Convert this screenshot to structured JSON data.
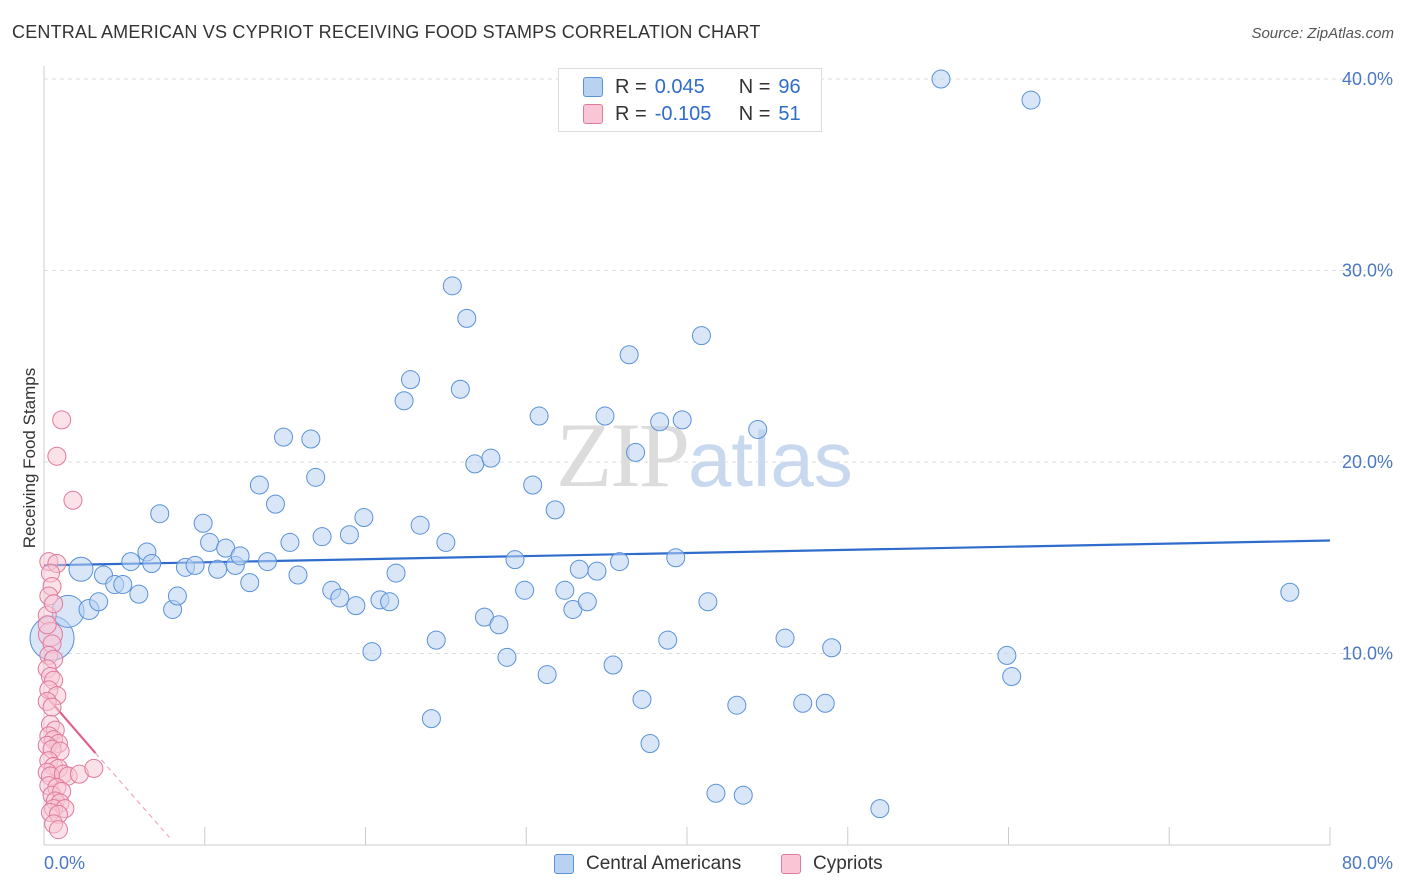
{
  "header": {
    "title": "CENTRAL AMERICAN VS CYPRIOT RECEIVING FOOD STAMPS CORRELATION CHART",
    "source": "Source: ZipAtlas.com"
  },
  "legend": {
    "rows": [
      {
        "r_label": "R =",
        "r_value": "0.045",
        "n_label": "N =",
        "n_value": "96"
      },
      {
        "r_label": "R =",
        "r_value": "-0.105",
        "n_label": "N =",
        "n_value": "51"
      }
    ]
  },
  "bottom_legend": [
    "Central Americans",
    "Cypriots"
  ],
  "watermark": {
    "zip": "ZIP",
    "atlas": "atlas"
  },
  "colors": {
    "central_fill": "#b8d2f2",
    "central_stroke": "#5b92d8",
    "central_line": "#2f6ccc",
    "cypriot_fill": "#f8c6d4",
    "cypriot_stroke": "#e07a9c",
    "cypriot_line": "#e0608a",
    "tick_text": "#4a78c2",
    "grid": "#dddddd"
  },
  "chart_data": {
    "type": "scatter",
    "title": "CENTRAL AMERICAN VS CYPRIOT RECEIVING FOOD STAMPS CORRELATION CHART",
    "xlabel": "",
    "ylabel": "Receiving Food Stamps",
    "xlim": [
      0,
      80
    ],
    "ylim": [
      0,
      40
    ],
    "x_tick_labels": [
      "0.0%",
      "80.0%"
    ],
    "y_ticks": [
      10,
      20,
      30,
      40
    ],
    "y_tick_labels": [
      "10.0%",
      "20.0%",
      "30.0%",
      "40.0%"
    ],
    "grid": true,
    "legend_position": "top-center",
    "series": [
      {
        "name": "Central Americans",
        "r": 0.045,
        "n": 96,
        "trend": {
          "x": [
            0,
            80
          ],
          "y": [
            14.6,
            15.9
          ]
        },
        "points": [
          [
            0.5,
            10.8,
            22
          ],
          [
            1.5,
            12.2,
            16
          ],
          [
            2.3,
            14.4,
            12
          ],
          [
            2.8,
            12.3,
            10
          ],
          [
            3.7,
            14.1,
            9
          ],
          [
            3.4,
            12.7,
            9
          ],
          [
            4.4,
            13.6,
            9
          ],
          [
            4.9,
            13.6,
            9
          ],
          [
            5.4,
            14.8,
            9
          ],
          [
            5.9,
            13.1,
            9
          ],
          [
            6.4,
            15.3,
            9
          ],
          [
            6.7,
            14.7,
            9
          ],
          [
            7.2,
            17.3,
            9
          ],
          [
            8.0,
            12.3,
            9
          ],
          [
            8.3,
            13.0,
            9
          ],
          [
            8.8,
            14.5,
            9
          ],
          [
            9.4,
            14.6,
            9
          ],
          [
            9.9,
            16.8,
            9
          ],
          [
            10.3,
            15.8,
            9
          ],
          [
            10.8,
            14.4,
            9
          ],
          [
            11.3,
            15.5,
            9
          ],
          [
            11.9,
            14.6,
            9
          ],
          [
            12.2,
            15.1,
            9
          ],
          [
            12.8,
            13.7,
            9
          ],
          [
            13.4,
            18.8,
            9
          ],
          [
            13.9,
            14.8,
            9
          ],
          [
            14.4,
            17.8,
            9
          ],
          [
            14.9,
            21.3,
            9
          ],
          [
            15.3,
            15.8,
            9
          ],
          [
            15.8,
            14.1,
            9
          ],
          [
            16.6,
            21.2,
            9
          ],
          [
            16.9,
            19.2,
            9
          ],
          [
            17.3,
            16.1,
            9
          ],
          [
            17.9,
            13.3,
            9
          ],
          [
            18.4,
            12.9,
            9
          ],
          [
            19.0,
            16.2,
            9
          ],
          [
            19.4,
            12.5,
            9
          ],
          [
            19.9,
            17.1,
            9
          ],
          [
            20.4,
            10.1,
            9
          ],
          [
            20.9,
            12.8,
            9
          ],
          [
            21.5,
            12.7,
            9
          ],
          [
            21.9,
            14.2,
            9
          ],
          [
            22.4,
            23.2,
            9
          ],
          [
            22.8,
            24.3,
            9
          ],
          [
            23.4,
            16.7,
            9
          ],
          [
            24.1,
            6.6,
            9
          ],
          [
            24.4,
            10.7,
            9
          ],
          [
            25.0,
            15.8,
            9
          ],
          [
            25.4,
            29.2,
            9
          ],
          [
            25.9,
            23.8,
            9
          ],
          [
            26.3,
            27.5,
            9
          ],
          [
            26.8,
            19.9,
            9
          ],
          [
            27.4,
            11.9,
            9
          ],
          [
            27.8,
            20.2,
            9
          ],
          [
            28.3,
            11.5,
            9
          ],
          [
            28.8,
            9.8,
            9
          ],
          [
            29.3,
            14.9,
            9
          ],
          [
            29.9,
            13.3,
            9
          ],
          [
            30.4,
            18.8,
            9
          ],
          [
            30.8,
            22.4,
            9
          ],
          [
            31.3,
            8.9,
            9
          ],
          [
            31.8,
            17.5,
            9
          ],
          [
            32.4,
            13.3,
            9
          ],
          [
            32.9,
            12.3,
            9
          ],
          [
            33.3,
            14.4,
            9
          ],
          [
            33.8,
            12.7,
            9
          ],
          [
            34.4,
            14.3,
            9
          ],
          [
            34.9,
            22.4,
            9
          ],
          [
            35.4,
            9.4,
            9
          ],
          [
            35.8,
            14.8,
            9
          ],
          [
            36.4,
            25.6,
            9
          ],
          [
            36.8,
            20.5,
            9
          ],
          [
            37.2,
            7.6,
            9
          ],
          [
            37.7,
            5.3,
            9
          ],
          [
            38.3,
            22.1,
            9
          ],
          [
            38.8,
            10.7,
            9
          ],
          [
            39.3,
            15.0,
            9
          ],
          [
            39.7,
            22.2,
            9
          ],
          [
            40.9,
            26.6,
            9
          ],
          [
            41.3,
            12.7,
            9
          ],
          [
            41.8,
            2.7,
            9
          ],
          [
            43.1,
            7.3,
            9
          ],
          [
            43.5,
            2.6,
            9
          ],
          [
            44.4,
            21.7,
            9
          ],
          [
            46.1,
            10.8,
            9
          ],
          [
            47.2,
            7.4,
            9
          ],
          [
            48.6,
            7.4,
            9
          ],
          [
            49.0,
            10.3,
            9
          ],
          [
            52.0,
            1.9,
            9
          ],
          [
            55.8,
            40.0,
            9
          ],
          [
            59.9,
            9.9,
            9
          ],
          [
            60.2,
            8.8,
            9
          ],
          [
            61.4,
            38.9,
            9
          ],
          [
            77.5,
            13.2,
            9
          ]
        ]
      },
      {
        "name": "Cypriots",
        "r": -0.105,
        "n": 51,
        "trend": {
          "x": [
            0,
            3.2
          ],
          "y": [
            7.9,
            4.8
          ]
        },
        "trend_extension": {
          "x": [
            3.2,
            7.8
          ],
          "y": [
            4.8,
            0.4
          ]
        },
        "points": [
          [
            0.2,
            12.0,
            9
          ],
          [
            0.4,
            11.0,
            12
          ],
          [
            0.5,
            10.5,
            9
          ],
          [
            0.3,
            9.9,
            9
          ],
          [
            0.6,
            9.7,
            9
          ],
          [
            0.2,
            9.2,
            9
          ],
          [
            0.4,
            8.8,
            9
          ],
          [
            0.6,
            8.6,
            9
          ],
          [
            0.3,
            8.1,
            9
          ],
          [
            0.8,
            7.8,
            9
          ],
          [
            0.2,
            7.5,
            9
          ],
          [
            0.5,
            7.2,
            9
          ],
          [
            0.4,
            6.3,
            9
          ],
          [
            0.7,
            6.0,
            9
          ],
          [
            0.3,
            5.7,
            9
          ],
          [
            0.6,
            5.5,
            9
          ],
          [
            0.9,
            5.3,
            9
          ],
          [
            0.2,
            5.2,
            9
          ],
          [
            0.5,
            5.0,
            9
          ],
          [
            1.0,
            4.9,
            9
          ],
          [
            0.3,
            4.4,
            9
          ],
          [
            0.6,
            4.1,
            9
          ],
          [
            0.9,
            4.0,
            9
          ],
          [
            0.2,
            3.8,
            9
          ],
          [
            0.4,
            3.6,
            9
          ],
          [
            1.2,
            3.7,
            9
          ],
          [
            1.5,
            3.6,
            9
          ],
          [
            0.3,
            3.1,
            9
          ],
          [
            0.8,
            3.0,
            9
          ],
          [
            0.5,
            2.6,
            9
          ],
          [
            1.1,
            2.8,
            9
          ],
          [
            0.7,
            2.3,
            9
          ],
          [
            1.0,
            2.2,
            9
          ],
          [
            0.6,
            1.9,
            9
          ],
          [
            1.3,
            1.9,
            9
          ],
          [
            0.4,
            1.7,
            9
          ],
          [
            0.9,
            1.6,
            9
          ],
          [
            0.6,
            1.1,
            9
          ],
          [
            0.9,
            0.8,
            9
          ],
          [
            1.1,
            22.2,
            9
          ],
          [
            0.8,
            20.3,
            9
          ],
          [
            1.8,
            18.0,
            9
          ],
          [
            0.3,
            14.8,
            9
          ],
          [
            0.8,
            14.7,
            9
          ],
          [
            0.4,
            14.2,
            9
          ],
          [
            0.5,
            13.5,
            9
          ],
          [
            0.3,
            13.0,
            9
          ],
          [
            0.6,
            12.6,
            9
          ],
          [
            0.2,
            11.5,
            9
          ],
          [
            2.2,
            3.7,
            9
          ],
          [
            3.1,
            4.0,
            9
          ]
        ]
      }
    ]
  }
}
